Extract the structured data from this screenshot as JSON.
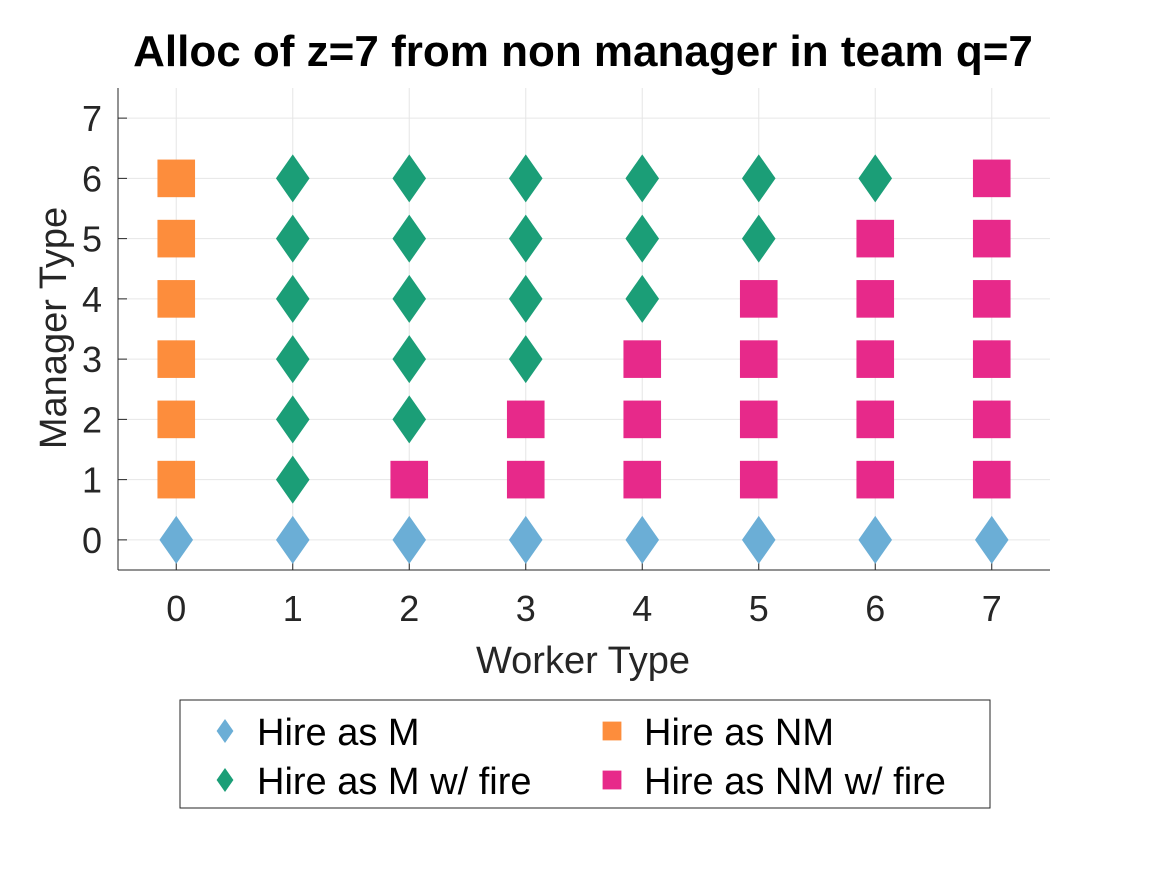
{
  "chart_data": {
    "type": "scatter",
    "title": "Alloc of z=7 from non manager in team q=7",
    "xlabel": "Worker Type",
    "ylabel": "Manager Type",
    "xlim": [
      -0.5,
      7.5
    ],
    "ylim": [
      -0.5,
      7.5
    ],
    "xticks": [
      "0",
      "1",
      "2",
      "3",
      "4",
      "5",
      "6",
      "7"
    ],
    "yticks": [
      "0",
      "1",
      "2",
      "3",
      "4",
      "5",
      "6",
      "7"
    ],
    "grid": true,
    "legend_position": "bottom-outside",
    "series": [
      {
        "name": "Hire as M",
        "marker": "diamond",
        "color": "#6baed6",
        "points": [
          [
            0,
            0
          ],
          [
            1,
            0
          ],
          [
            2,
            0
          ],
          [
            3,
            0
          ],
          [
            4,
            0
          ],
          [
            5,
            0
          ],
          [
            6,
            0
          ],
          [
            7,
            0
          ]
        ]
      },
      {
        "name": "Hire as NM",
        "marker": "square",
        "color": "#fd8d3c",
        "points": [
          [
            0,
            1
          ],
          [
            0,
            2
          ],
          [
            0,
            3
          ],
          [
            0,
            4
          ],
          [
            0,
            5
          ],
          [
            0,
            6
          ]
        ]
      },
      {
        "name": "Hire as M w/ fire",
        "marker": "diamond",
        "color": "#1b9e77",
        "points": [
          [
            1,
            1
          ],
          [
            1,
            2
          ],
          [
            1,
            3
          ],
          [
            1,
            4
          ],
          [
            1,
            5
          ],
          [
            1,
            6
          ],
          [
            2,
            2
          ],
          [
            2,
            3
          ],
          [
            2,
            4
          ],
          [
            2,
            5
          ],
          [
            2,
            6
          ],
          [
            3,
            3
          ],
          [
            3,
            4
          ],
          [
            3,
            5
          ],
          [
            3,
            6
          ],
          [
            4,
            4
          ],
          [
            4,
            5
          ],
          [
            4,
            6
          ],
          [
            5,
            5
          ],
          [
            5,
            6
          ],
          [
            6,
            6
          ]
        ]
      },
      {
        "name": "Hire as NM w/ fire",
        "marker": "square",
        "color": "#e7298a",
        "points": [
          [
            2,
            1
          ],
          [
            3,
            1
          ],
          [
            3,
            2
          ],
          [
            4,
            1
          ],
          [
            4,
            2
          ],
          [
            4,
            3
          ],
          [
            5,
            1
          ],
          [
            5,
            2
          ],
          [
            5,
            3
          ],
          [
            5,
            4
          ],
          [
            6,
            1
          ],
          [
            6,
            2
          ],
          [
            6,
            3
          ],
          [
            6,
            4
          ],
          [
            6,
            5
          ],
          [
            7,
            1
          ],
          [
            7,
            2
          ],
          [
            7,
            3
          ],
          [
            7,
            4
          ],
          [
            7,
            5
          ],
          [
            7,
            6
          ]
        ]
      }
    ]
  }
}
